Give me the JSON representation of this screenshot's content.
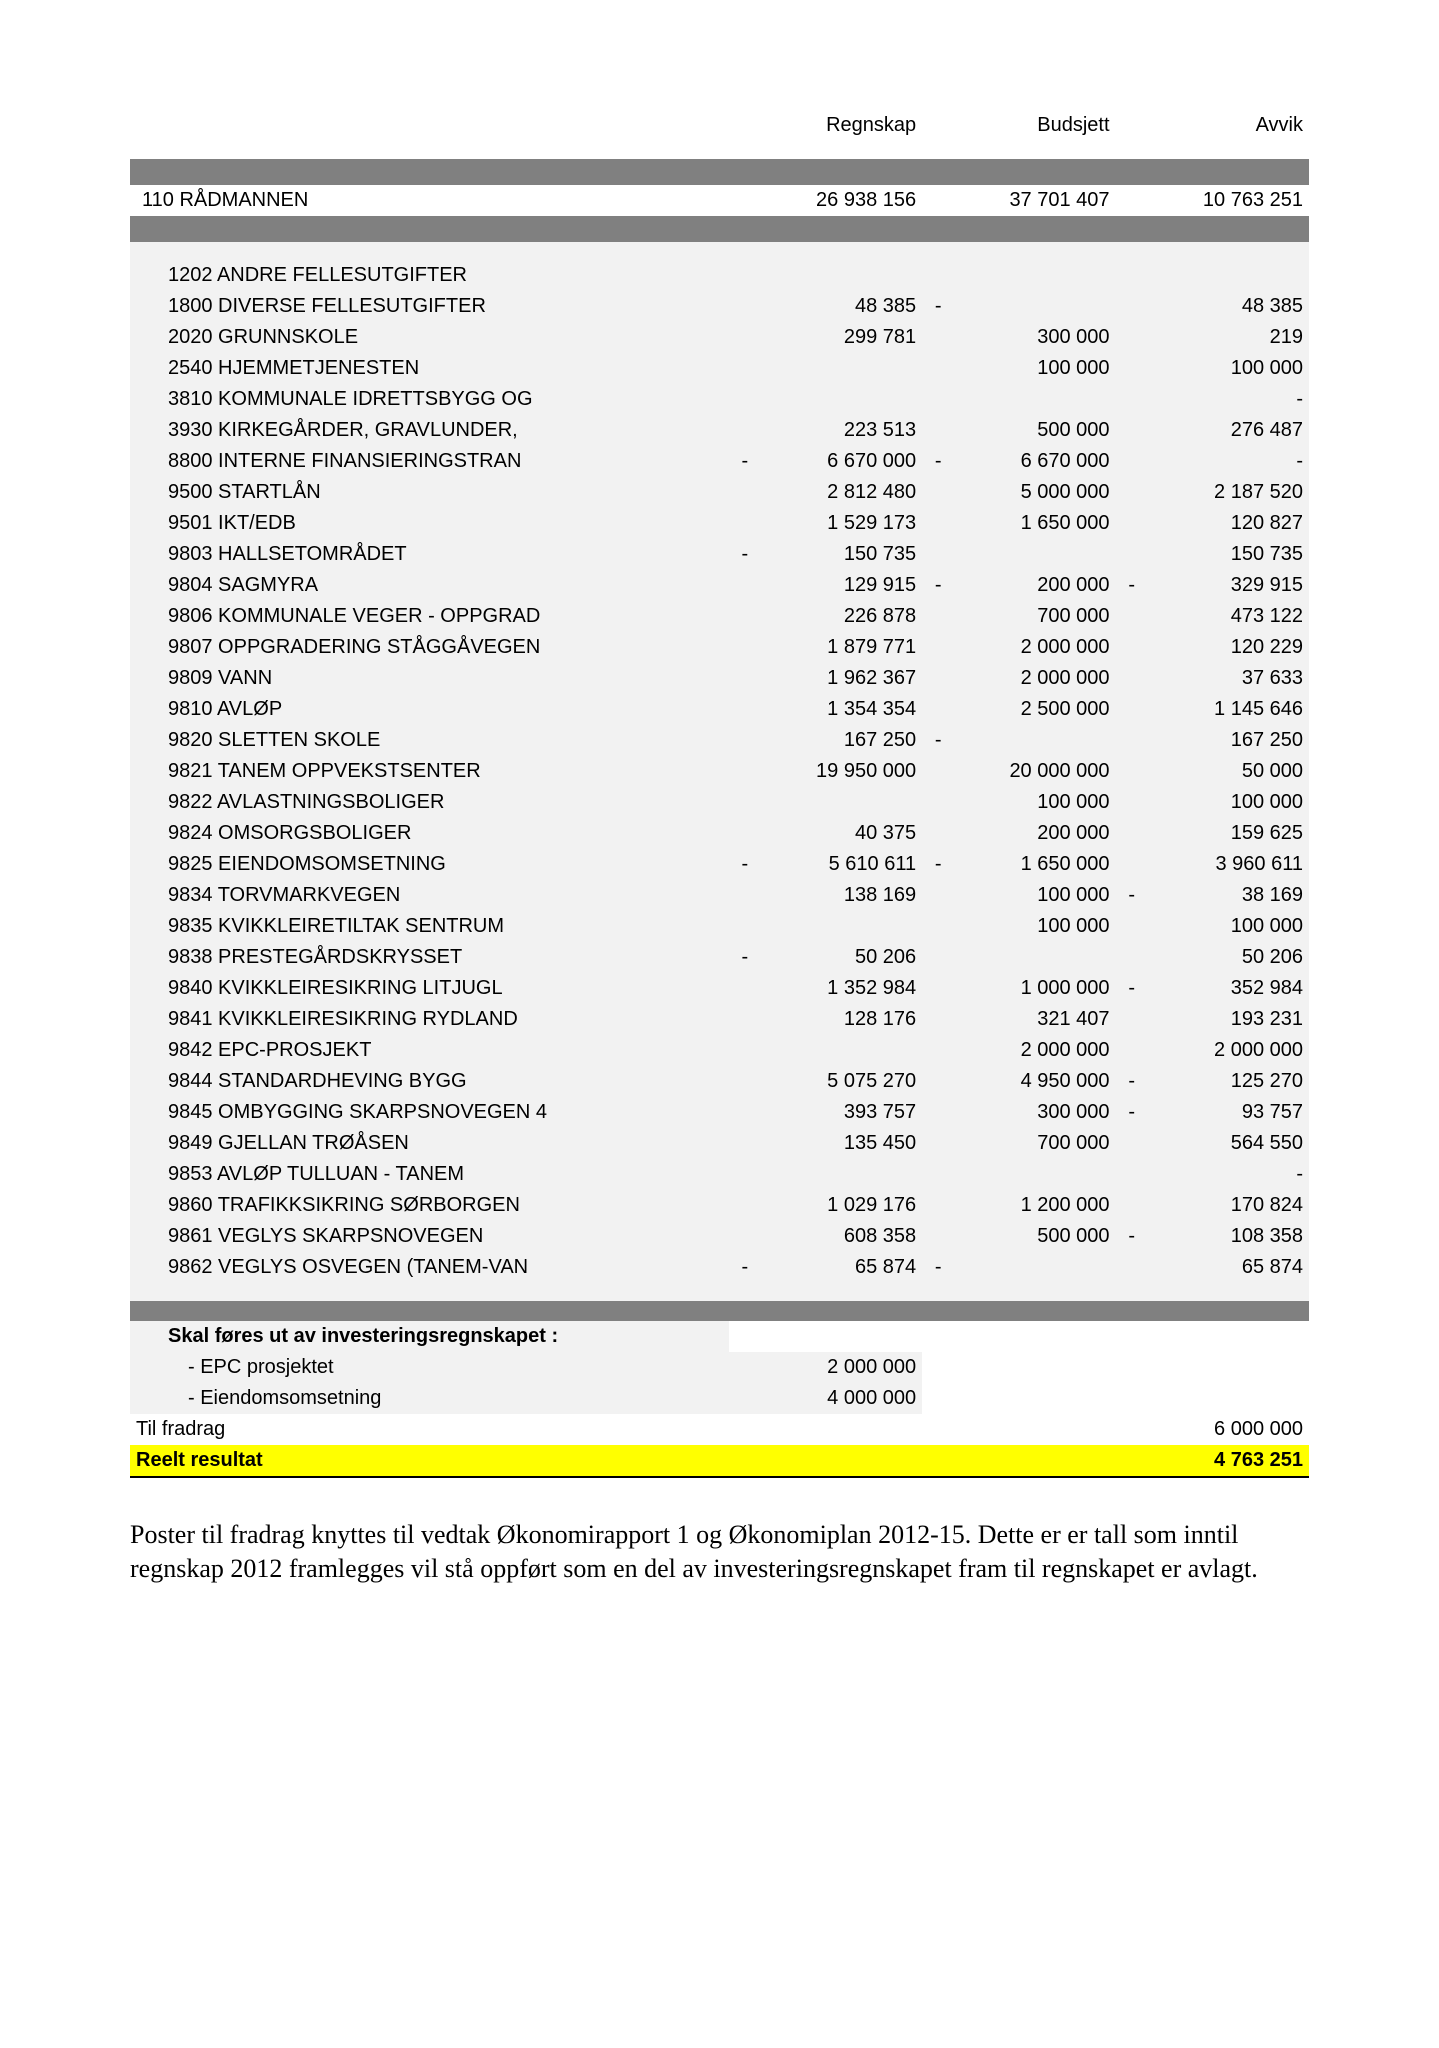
{
  "columns": {
    "regnskap": "Regnskap",
    "budsjett": "Budsjett",
    "avvik": "Avvik"
  },
  "summary": {
    "label": "110 RÅDMANNEN",
    "regnskap": "26 938 156",
    "budsjett": "37 701 407",
    "avvik": "10 763 251"
  },
  "rows": [
    {
      "label": "1202 ANDRE FELLESUTGIFTER"
    },
    {
      "label": "1800 DIVERSE FELLESUTGIFTER",
      "regnskap": "48 385",
      "budsjett_neg": "-",
      "avvik": "48 385"
    },
    {
      "label": "2020 GRUNNSKOLE",
      "regnskap": "299 781",
      "budsjett": "300 000",
      "avvik": "219"
    },
    {
      "label": "2540 HJEMMETJENESTEN",
      "budsjett": "100 000",
      "avvik": "100 000"
    },
    {
      "label": "3810 KOMMUNALE IDRETTSBYGG OG",
      "avvik": "-"
    },
    {
      "label": "3930 KIRKEGÅRDER, GRAVLUNDER,",
      "regnskap": "223 513",
      "budsjett": "500 000",
      "avvik": "276 487"
    },
    {
      "label": "8800 INTERNE FINANSIERINGSTRAN",
      "regnskap_neg": "-",
      "regnskap": "6 670 000",
      "budsjett_neg": "-",
      "budsjett": "6 670 000",
      "avvik": "-"
    },
    {
      "label": "9500 STARTLÅN",
      "regnskap": "2 812 480",
      "budsjett": "5 000 000",
      "avvik": "2 187 520"
    },
    {
      "label": "9501 IKT/EDB",
      "regnskap": "1 529 173",
      "budsjett": "1 650 000",
      "avvik": "120 827"
    },
    {
      "label": "9803 HALLSETOMRÅDET",
      "regnskap_neg": "-",
      "regnskap": "150 735",
      "avvik": "150 735"
    },
    {
      "label": "9804 SAGMYRA",
      "regnskap": "129 915",
      "budsjett_neg": "-",
      "budsjett": "200 000",
      "avvik_neg": "-",
      "avvik": "329 915"
    },
    {
      "label": "9806 KOMMUNALE VEGER - OPPGRAD",
      "regnskap": "226 878",
      "budsjett": "700 000",
      "avvik": "473 122"
    },
    {
      "label": "9807 OPPGRADERING STÅGGÅVEGEN",
      "regnskap": "1 879 771",
      "budsjett": "2 000 000",
      "avvik": "120 229"
    },
    {
      "label": "9809 VANN",
      "regnskap": "1 962 367",
      "budsjett": "2 000 000",
      "avvik": "37 633"
    },
    {
      "label": "9810 AVLØP",
      "regnskap": "1 354 354",
      "budsjett": "2 500 000",
      "avvik": "1 145 646"
    },
    {
      "label": "9820 SLETTEN SKOLE",
      "regnskap": "167 250",
      "budsjett_neg": "-",
      "avvik": "167 250"
    },
    {
      "label": "9821 TANEM OPPVEKSTSENTER",
      "regnskap": "19 950 000",
      "budsjett": "20 000 000",
      "avvik": "50 000"
    },
    {
      "label": "9822 AVLASTNINGSBOLIGER",
      "budsjett": "100 000",
      "avvik": "100 000"
    },
    {
      "label": "9824 OMSORGSBOLIGER",
      "regnskap": "40 375",
      "budsjett": "200 000",
      "avvik": "159 625"
    },
    {
      "label": "9825 EIENDOMSOMSETNING",
      "regnskap_neg": "-",
      "regnskap": "5 610 611",
      "budsjett_neg": "-",
      "budsjett": "1 650 000",
      "avvik": "3 960 611"
    },
    {
      "label": "9834 TORVMARKVEGEN",
      "regnskap": "138 169",
      "budsjett": "100 000",
      "avvik_neg": "-",
      "avvik": "38 169"
    },
    {
      "label": "9835 KVIKKLEIRETILTAK SENTRUM",
      "budsjett": "100 000",
      "avvik": "100 000"
    },
    {
      "label": "9838 PRESTEGÅRDSKRYSSET",
      "regnskap_neg": "-",
      "regnskap": "50 206",
      "avvik": "50 206"
    },
    {
      "label": "9840 KVIKKLEIRESIKRING LITJUGL",
      "regnskap": "1 352 984",
      "budsjett": "1 000 000",
      "avvik_neg": "-",
      "avvik": "352 984"
    },
    {
      "label": "9841 KVIKKLEIRESIKRING RYDLAND",
      "regnskap": "128 176",
      "budsjett": "321 407",
      "avvik": "193 231"
    },
    {
      "label": "9842 EPC-PROSJEKT",
      "budsjett": "2 000 000",
      "avvik": "2 000 000"
    },
    {
      "label": "9844 STANDARDHEVING BYGG",
      "regnskap": "5 075 270",
      "budsjett": "4 950 000",
      "avvik_neg": "-",
      "avvik": "125 270"
    },
    {
      "label": "9845 OMBYGGING SKARPSNOVEGEN 4",
      "regnskap": "393 757",
      "budsjett": "300 000",
      "avvik_neg": "-",
      "avvik": "93 757"
    },
    {
      "label": "9849 GJELLAN TRØÅSEN",
      "regnskap": "135 450",
      "budsjett": "700 000",
      "avvik": "564 550"
    },
    {
      "label": "9853 AVLØP TULLUAN - TANEM",
      "avvik": "-"
    },
    {
      "label": "9860 TRAFIKKSIKRING SØRBORGEN",
      "regnskap": "1 029 176",
      "budsjett": "1 200 000",
      "avvik": "170 824"
    },
    {
      "label": "9861 VEGLYS SKARPSNOVEGEN",
      "regnskap": "608 358",
      "budsjett": "500 000",
      "avvik_neg": "-",
      "avvik": "108 358"
    },
    {
      "label": "9862 VEGLYS OSVEGEN (TANEM-VAN",
      "regnskap_neg": "-",
      "regnskap": "65 874",
      "budsjett_neg": "-",
      "avvik": "65 874"
    }
  ],
  "section": {
    "heading": "Skal føres ut av investeringsregnskapet :",
    "items": [
      {
        "label": "- EPC prosjektet",
        "regnskap": "2 000 000"
      },
      {
        "label": "- Eiendomsomsetning",
        "regnskap": "4 000 000"
      }
    ]
  },
  "til": {
    "label": "Til fradrag",
    "avvik": "6 000 000"
  },
  "result": {
    "label": "Reelt resultat",
    "avvik": "4 763 251"
  },
  "footnote": "Poster til fradrag knyttes til vedtak Økonomirapport 1 og Økonomiplan 2012-15. Dette er er tall som inntil regnskap 2012 framlegges vil stå oppført som en del av investeringsregnskapet fram til regnskapet er avlagt.",
  "style": {
    "colw": {
      "label": 520,
      "neg": 28,
      "num": 130
    },
    "colors": {
      "bar": "#808080",
      "data_bg": "#f2f2f2",
      "result_bg": "#ffff00",
      "text": "#000000"
    }
  }
}
